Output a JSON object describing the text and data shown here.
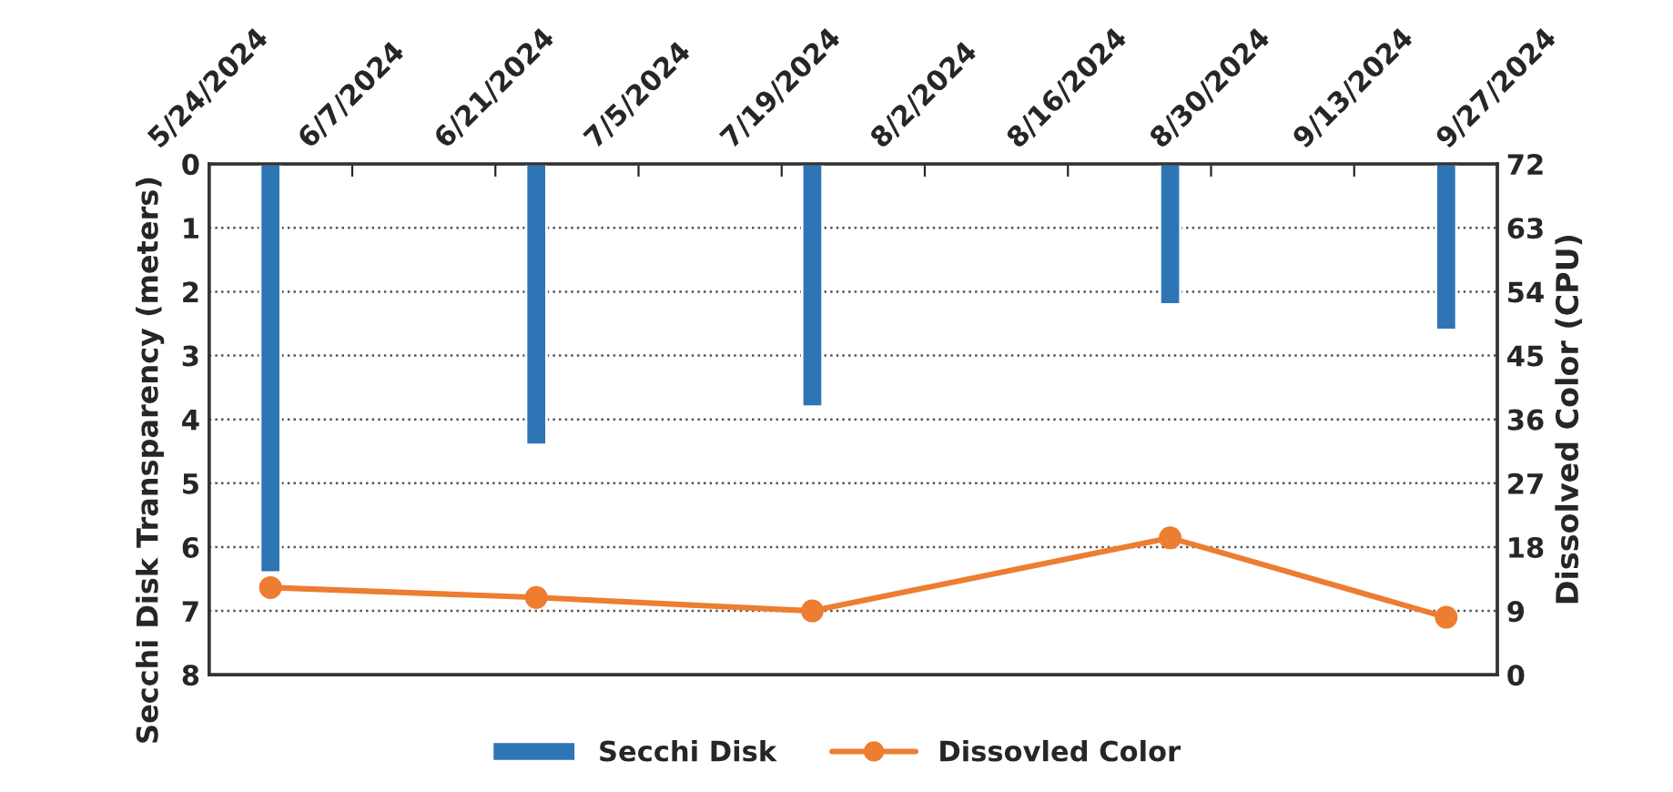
{
  "chart_data": {
    "type": "bar",
    "ylabel": "Secchi Disk Transparency (meters)",
    "y2label": "Dissolved Color (CPU)",
    "x": [
      "2024-05-30",
      "2024-06-25",
      "2024-07-22",
      "2024-08-26",
      "2024-09-22"
    ],
    "series": [
      {
        "name": "Secchi Disk",
        "color": "#2e75b6",
        "values": [
          6.4,
          4.4,
          3.8,
          2.2,
          2.6
        ]
      },
      {
        "name": "Dissovled Color",
        "type": "line",
        "axis": "y2",
        "color": "#ed7d31",
        "marker": "circle",
        "line_style": "solid",
        "values": [
          12.3,
          10.9,
          9.0,
          19.3,
          8.1
        ]
      }
    ],
    "xlim": [
      "2024-05-24",
      "2024-09-27"
    ],
    "xticks": [
      {
        "value": "2024-05-24",
        "label": "5/24/2024"
      },
      {
        "value": "2024-06-07",
        "label": "6/7/2024"
      },
      {
        "value": "2024-06-21",
        "label": "6/21/2024"
      },
      {
        "value": "2024-07-05",
        "label": "7/5/2024"
      },
      {
        "value": "2024-07-19",
        "label": "7/19/2024"
      },
      {
        "value": "2024-08-02",
        "label": "8/2/2024"
      },
      {
        "value": "2024-08-16",
        "label": "8/16/2024"
      },
      {
        "value": "2024-08-30",
        "label": "8/30/2024"
      },
      {
        "value": "2024-09-13",
        "label": "9/13/2024"
      },
      {
        "value": "2024-09-27",
        "label": "9/27/2024"
      }
    ],
    "ylim": [
      8,
      0
    ],
    "yticks": [
      0,
      1,
      2,
      3,
      4,
      5,
      6,
      7,
      8
    ],
    "y2lim": [
      0,
      72
    ],
    "y2ticks": [
      0,
      9,
      18,
      27,
      36,
      45,
      54,
      63,
      72
    ],
    "grid": "y",
    "legend": "bottom"
  }
}
